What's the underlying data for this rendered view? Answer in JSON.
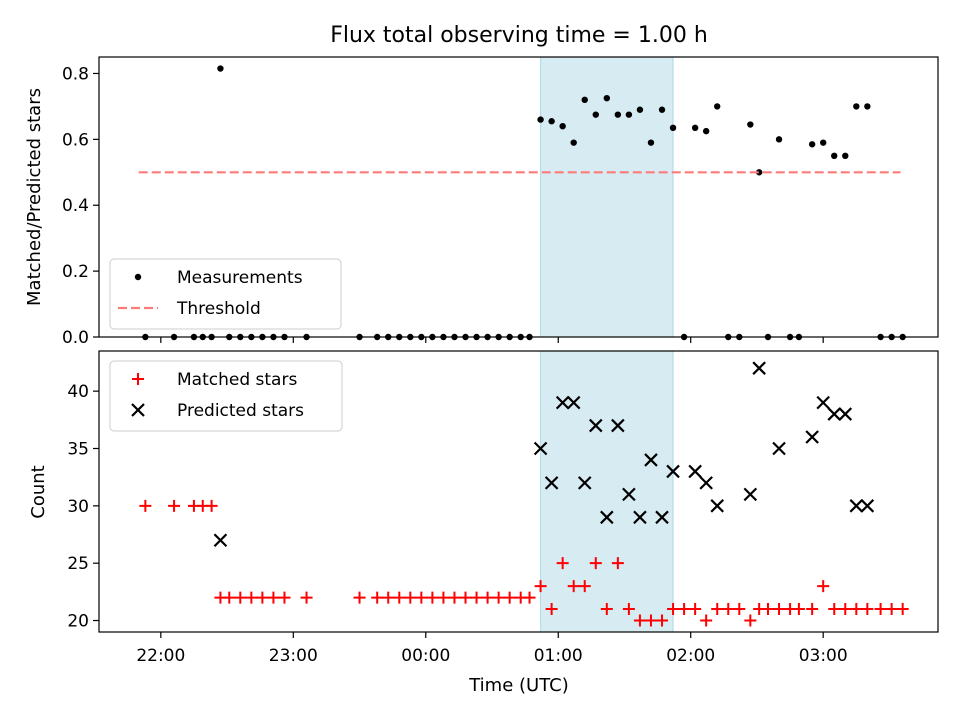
{
  "title": "Flux total observing time = 1.00 h",
  "x_tick_labels": [
    "22:00",
    "23:00",
    "00:00",
    "01:00",
    "02:00",
    "03:00"
  ],
  "chart_data": [
    {
      "type": "scatter",
      "panel": "top",
      "xlabel": "",
      "ylabel": "Matched/Predicted stars",
      "x_unit": "time (UTC)",
      "xlim": [
        "21:32",
        "03:52"
      ],
      "ylim": [
        0,
        0.85
      ],
      "y_ticks": [
        0.0,
        0.2,
        0.4,
        0.6,
        0.8
      ],
      "y_tick_labels": [
        "0.0",
        "0.2",
        "0.4",
        "0.6",
        "0.8"
      ],
      "shaded_interval": [
        "00:52",
        "01:52"
      ],
      "legend_placement": "lower-left",
      "series": [
        {
          "name": "Measurements",
          "marker": "dot",
          "color": "#000000",
          "points": [
            [
              "21:53",
              0
            ],
            [
              "22:06",
              0
            ],
            [
              "22:15",
              0
            ],
            [
              "22:19",
              0
            ],
            [
              "22:23",
              0
            ],
            [
              "22:27",
              0.815
            ],
            [
              "22:31",
              0
            ],
            [
              "22:36",
              0
            ],
            [
              "22:41",
              0
            ],
            [
              "22:46",
              0
            ],
            [
              "22:51",
              0
            ],
            [
              "22:56",
              0
            ],
            [
              "23:06",
              0
            ],
            [
              "23:30",
              0
            ],
            [
              "23:38",
              0
            ],
            [
              "23:43",
              0
            ],
            [
              "23:48",
              0
            ],
            [
              "23:53",
              0
            ],
            [
              "23:58",
              0
            ],
            [
              "00:03",
              0
            ],
            [
              "00:08",
              0
            ],
            [
              "00:13",
              0
            ],
            [
              "00:18",
              0
            ],
            [
              "00:23",
              0
            ],
            [
              "00:28",
              0
            ],
            [
              "00:33",
              0
            ],
            [
              "00:38",
              0
            ],
            [
              "00:43",
              0
            ],
            [
              "00:47",
              0
            ],
            [
              "00:52",
              0.66
            ],
            [
              "00:57",
              0.655
            ],
            [
              "01:02",
              0.64
            ],
            [
              "01:07",
              0.59
            ],
            [
              "01:12",
              0.72
            ],
            [
              "01:17",
              0.675
            ],
            [
              "01:22",
              0.725
            ],
            [
              "01:27",
              0.675
            ],
            [
              "01:32",
              0.675
            ],
            [
              "01:37",
              0.69
            ],
            [
              "01:42",
              0.59
            ],
            [
              "01:47",
              0.69
            ],
            [
              "01:52",
              0.635
            ],
            [
              "01:57",
              0
            ],
            [
              "02:02",
              0.635
            ],
            [
              "02:07",
              0.625
            ],
            [
              "02:12",
              0.7
            ],
            [
              "02:17",
              0
            ],
            [
              "02:22",
              0
            ],
            [
              "02:27",
              0.645
            ],
            [
              "02:31",
              0.5
            ],
            [
              "02:35",
              0
            ],
            [
              "02:40",
              0.6
            ],
            [
              "02:45",
              0
            ],
            [
              "02:49",
              0
            ],
            [
              "02:55",
              0.585
            ],
            [
              "03:00",
              0.59
            ],
            [
              "03:05",
              0.55
            ],
            [
              "03:10",
              0.55
            ],
            [
              "03:15",
              0.7
            ],
            [
              "03:20",
              0.7
            ],
            [
              "03:26",
              0
            ],
            [
              "03:31",
              0
            ],
            [
              "03:36",
              0
            ]
          ]
        },
        {
          "name": "Threshold",
          "marker": "dashed-line",
          "color": "#ff7a7a",
          "points": [
            [
              "21:50",
              0.5
            ],
            [
              "03:35",
              0.5
            ]
          ]
        }
      ]
    },
    {
      "type": "scatter",
      "panel": "bottom",
      "xlabel": "Time (UTC)",
      "ylabel": "Count",
      "x_unit": "time (UTC)",
      "xlim": [
        "21:32",
        "03:52"
      ],
      "ylim": [
        19,
        43.5
      ],
      "y_ticks": [
        20,
        25,
        30,
        35,
        40
      ],
      "y_tick_labels": [
        "20",
        "25",
        "30",
        "35",
        "40"
      ],
      "shaded_interval": [
        "00:52",
        "01:52"
      ],
      "legend_placement": "top-left",
      "series": [
        {
          "name": "Matched stars",
          "marker": "plus",
          "color": "#ff0000",
          "points": [
            [
              "21:53",
              30
            ],
            [
              "22:06",
              30
            ],
            [
              "22:15",
              30
            ],
            [
              "22:19",
              30
            ],
            [
              "22:23",
              30
            ],
            [
              "22:27",
              22
            ],
            [
              "22:31",
              22
            ],
            [
              "22:36",
              22
            ],
            [
              "22:41",
              22
            ],
            [
              "22:46",
              22
            ],
            [
              "22:51",
              22
            ],
            [
              "22:56",
              22
            ],
            [
              "23:06",
              22
            ],
            [
              "23:30",
              22
            ],
            [
              "23:38",
              22
            ],
            [
              "23:43",
              22
            ],
            [
              "23:48",
              22
            ],
            [
              "23:53",
              22
            ],
            [
              "23:58",
              22
            ],
            [
              "00:03",
              22
            ],
            [
              "00:08",
              22
            ],
            [
              "00:13",
              22
            ],
            [
              "00:18",
              22
            ],
            [
              "00:23",
              22
            ],
            [
              "00:28",
              22
            ],
            [
              "00:33",
              22
            ],
            [
              "00:38",
              22
            ],
            [
              "00:43",
              22
            ],
            [
              "00:47",
              22
            ],
            [
              "00:52",
              23
            ],
            [
              "00:57",
              21
            ],
            [
              "01:02",
              25
            ],
            [
              "01:07",
              23
            ],
            [
              "01:12",
              23
            ],
            [
              "01:17",
              25
            ],
            [
              "01:22",
              21
            ],
            [
              "01:27",
              25
            ],
            [
              "01:32",
              21
            ],
            [
              "01:37",
              20
            ],
            [
              "01:42",
              20
            ],
            [
              "01:47",
              20
            ],
            [
              "01:52",
              21
            ],
            [
              "01:57",
              21
            ],
            [
              "02:02",
              21
            ],
            [
              "02:07",
              20
            ],
            [
              "02:12",
              21
            ],
            [
              "02:17",
              21
            ],
            [
              "02:22",
              21
            ],
            [
              "02:27",
              20
            ],
            [
              "02:31",
              21
            ],
            [
              "02:35",
              21
            ],
            [
              "02:40",
              21
            ],
            [
              "02:45",
              21
            ],
            [
              "02:49",
              21
            ],
            [
              "02:55",
              21
            ],
            [
              "03:00",
              23
            ],
            [
              "03:05",
              21
            ],
            [
              "03:10",
              21
            ],
            [
              "03:15",
              21
            ],
            [
              "03:20",
              21
            ],
            [
              "03:26",
              21
            ],
            [
              "03:31",
              21
            ],
            [
              "03:36",
              21
            ]
          ]
        },
        {
          "name": "Predicted stars",
          "marker": "x",
          "color": "#000000",
          "points": [
            [
              "22:27",
              27
            ],
            [
              "00:52",
              35
            ],
            [
              "00:57",
              32
            ],
            [
              "01:02",
              39
            ],
            [
              "01:07",
              39
            ],
            [
              "01:12",
              32
            ],
            [
              "01:17",
              37
            ],
            [
              "01:22",
              29
            ],
            [
              "01:27",
              37
            ],
            [
              "01:32",
              31
            ],
            [
              "01:37",
              29
            ],
            [
              "01:42",
              34
            ],
            [
              "01:47",
              29
            ],
            [
              "01:52",
              33
            ],
            [
              "02:02",
              33
            ],
            [
              "02:07",
              32
            ],
            [
              "02:12",
              30
            ],
            [
              "02:27",
              31
            ],
            [
              "02:31",
              42
            ],
            [
              "02:40",
              35
            ],
            [
              "02:55",
              36
            ],
            [
              "03:00",
              39
            ],
            [
              "03:05",
              38
            ],
            [
              "03:10",
              38
            ],
            [
              "03:15",
              30
            ],
            [
              "03:20",
              30
            ]
          ]
        }
      ]
    }
  ]
}
